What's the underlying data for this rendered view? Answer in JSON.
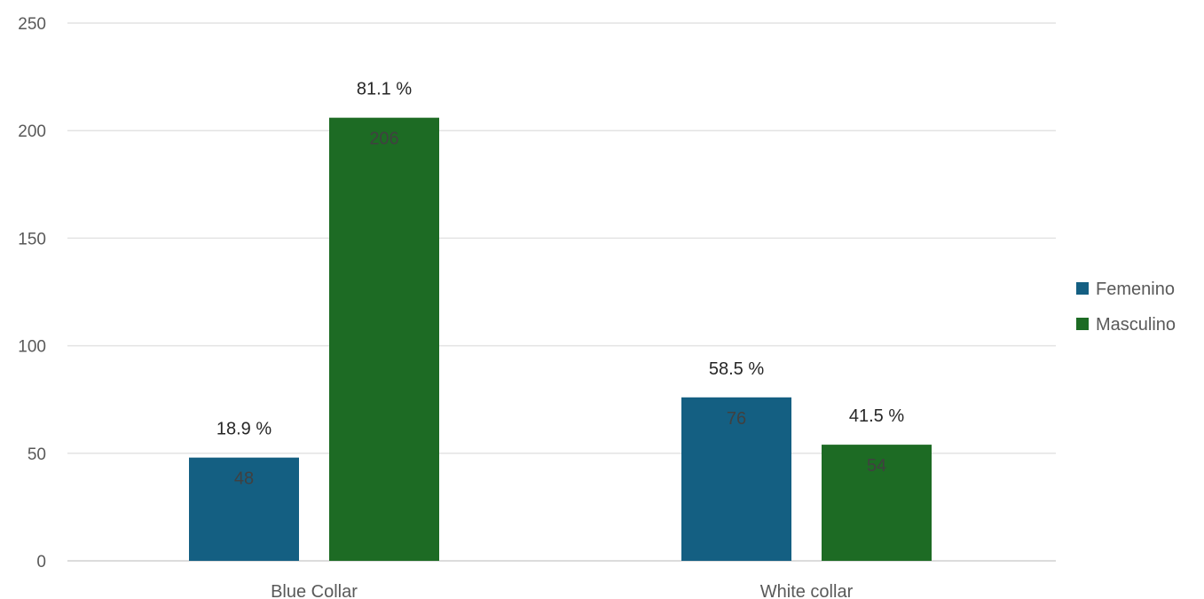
{
  "chart_data": {
    "type": "bar",
    "categories": [
      "Blue Collar",
      "White collar"
    ],
    "series": [
      {
        "name": "Femenino",
        "values": [
          48,
          76
        ],
        "percent_labels": [
          "18.9 %",
          "58.5 %"
        ],
        "color": "#145f82"
      },
      {
        "name": "Masculino",
        "values": [
          206,
          54
        ],
        "percent_labels": [
          "81.1 %",
          "41.5 %"
        ],
        "color": "#1d6b24"
      }
    ],
    "ylim": [
      0,
      250
    ],
    "yticks": [
      0,
      50,
      100,
      150,
      200,
      250
    ],
    "grid": true,
    "legend_position": "right"
  }
}
